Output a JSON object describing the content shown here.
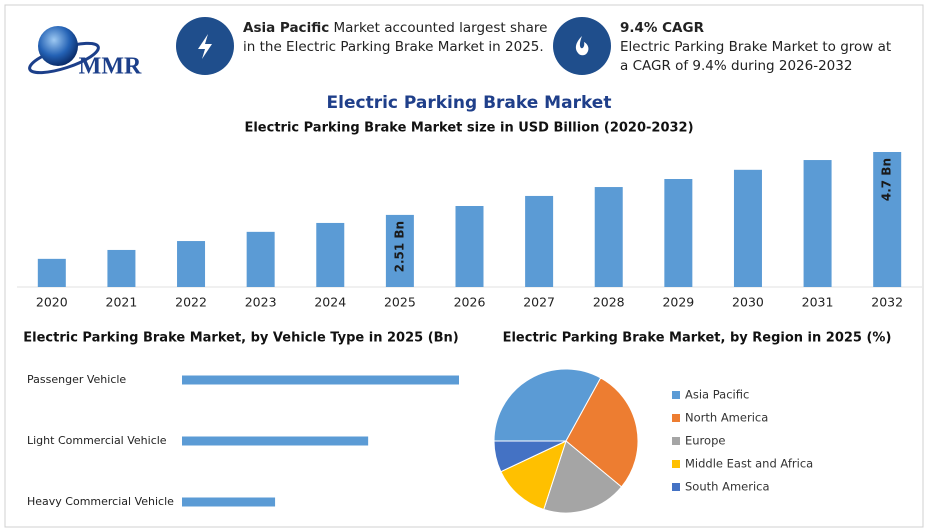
{
  "header": {
    "logo": "MMR",
    "highlight": {
      "bold": "Asia Pacific",
      "text": "Market accounted largest share in the Electric Parking Brake Market in 2025."
    },
    "cagr": {
      "title": "9.4% CAGR",
      "text": "Electric Parking Brake Market to grow at a CAGR of 9.4% during 2026-2032"
    },
    "title": "Electric Parking Brake Market"
  },
  "chart_data": [
    {
      "type": "bar",
      "title": "Electric Parking Brake Market size in USD Billion (2020-2032)",
      "categories": [
        "2020",
        "2021",
        "2022",
        "2023",
        "2024",
        "2025",
        "2026",
        "2027",
        "2028",
        "2029",
        "2030",
        "2031",
        "2032"
      ],
      "values": [
        0.98,
        1.29,
        1.6,
        1.92,
        2.23,
        2.51,
        2.82,
        3.17,
        3.48,
        3.76,
        4.08,
        4.42,
        4.7
      ],
      "value_labels": [
        null,
        null,
        null,
        null,
        null,
        "2.51 Bn",
        null,
        null,
        null,
        null,
        null,
        null,
        "4.7 Bn"
      ],
      "color": "#5b9bd5"
    },
    {
      "type": "hbar",
      "title": "Electric Parking Brake Market, by Vehicle Type in 2025 (Bn)",
      "categories": [
        "Passenger Vehicle",
        "Light Commercial Vehicle",
        "Heavy Commercial Vehicle"
      ],
      "values": [
        1.25,
        0.84,
        0.42
      ],
      "color": "#5b9bd5"
    },
    {
      "type": "pie",
      "title": "Electric Parking Brake Market, by Region in 2025 (%)",
      "categories": [
        "Asia Pacific",
        "North America",
        "Europe",
        "Middle East and Africa",
        "South America"
      ],
      "values": [
        33,
        28,
        19,
        13,
        7
      ],
      "colors": [
        "#5b9bd5",
        "#ed7d31",
        "#a5a5a5",
        "#ffc000",
        "#4472c4"
      ],
      "legend": "right"
    }
  ]
}
